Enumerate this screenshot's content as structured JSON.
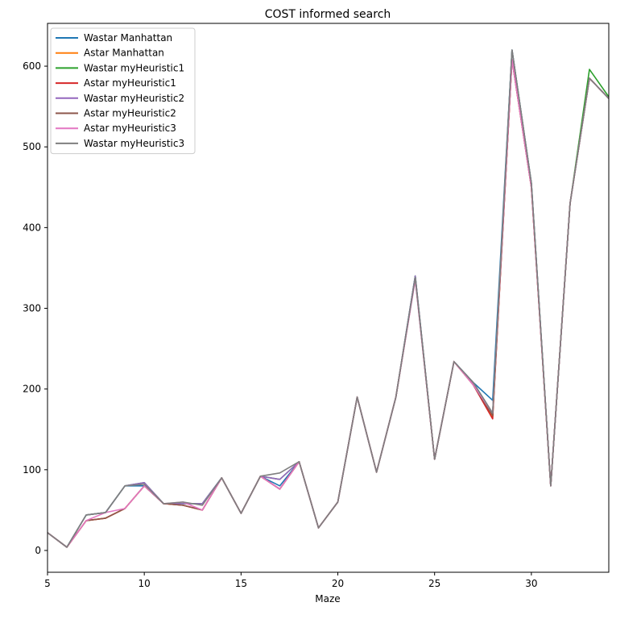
{
  "chart_data": {
    "type": "line",
    "title": "COST informed search",
    "xlabel": "Maze",
    "ylabel": "",
    "xlim": [
      5,
      34
    ],
    "ylim": [
      -27,
      653
    ],
    "xticks": [
      5,
      10,
      15,
      20,
      25,
      30
    ],
    "yticks": [
      0,
      100,
      200,
      300,
      400,
      500,
      600
    ],
    "grid": false,
    "legend_position": "top-left",
    "x": [
      5,
      6,
      7,
      8,
      9,
      10,
      11,
      12,
      13,
      14,
      15,
      16,
      17,
      18,
      19,
      20,
      21,
      22,
      23,
      24,
      25,
      26,
      27,
      28,
      29,
      30,
      31,
      32,
      33,
      34
    ],
    "series": [
      {
        "name": "Wastar Manhattan",
        "color": "#1f77b4",
        "values": [
          22,
          4,
          44,
          47,
          80,
          80,
          58,
          58,
          58,
          90,
          46,
          92,
          80,
          110,
          28,
          60,
          190,
          97,
          190,
          340,
          113,
          234,
          208,
          186,
          620,
          455,
          80,
          430,
          585,
          560
        ]
      },
      {
        "name": "Astar Manhattan",
        "color": "#ff7f0e",
        "values": [
          22,
          4,
          37,
          40,
          52,
          80,
          58,
          56,
          50,
          90,
          46,
          92,
          76,
          110,
          28,
          60,
          190,
          97,
          190,
          337,
          113,
          234,
          205,
          165,
          608,
          450,
          80,
          430,
          585,
          560
        ]
      },
      {
        "name": "Wastar myHeuristic1",
        "color": "#2ca02c",
        "values": [
          22,
          4,
          44,
          47,
          80,
          84,
          58,
          58,
          58,
          90,
          46,
          92,
          88,
          110,
          28,
          60,
          190,
          97,
          190,
          340,
          113,
          234,
          208,
          170,
          620,
          455,
          80,
          430,
          596,
          562
        ]
      },
      {
        "name": "Astar myHeuristic1",
        "color": "#d62728",
        "values": [
          22,
          4,
          37,
          40,
          52,
          80,
          58,
          56,
          50,
          90,
          46,
          92,
          76,
          110,
          28,
          60,
          190,
          97,
          190,
          337,
          113,
          234,
          205,
          163,
          608,
          450,
          80,
          430,
          585,
          560
        ]
      },
      {
        "name": "Wastar myHeuristic2",
        "color": "#9467bd",
        "values": [
          22,
          4,
          44,
          47,
          80,
          84,
          58,
          58,
          58,
          90,
          46,
          92,
          88,
          110,
          28,
          60,
          190,
          97,
          190,
          340,
          113,
          234,
          208,
          170,
          620,
          455,
          80,
          430,
          585,
          560
        ]
      },
      {
        "name": "Astar myHeuristic2",
        "color": "#8c564b",
        "values": [
          22,
          4,
          37,
          40,
          52,
          80,
          58,
          56,
          50,
          90,
          46,
          92,
          76,
          110,
          28,
          60,
          190,
          97,
          190,
          337,
          113,
          234,
          205,
          167,
          608,
          450,
          80,
          430,
          585,
          560
        ]
      },
      {
        "name": "Astar myHeuristic3",
        "color": "#e377c2",
        "values": [
          22,
          4,
          37,
          47,
          52,
          80,
          58,
          60,
          50,
          90,
          46,
          92,
          76,
          110,
          28,
          60,
          190,
          97,
          190,
          335,
          113,
          234,
          205,
          170,
          608,
          450,
          80,
          430,
          585,
          560
        ]
      },
      {
        "name": "Wastar myHeuristic3",
        "color": "#7f7f7f",
        "values": [
          22,
          4,
          44,
          47,
          80,
          82,
          58,
          60,
          56,
          90,
          46,
          92,
          96,
          110,
          28,
          60,
          190,
          97,
          190,
          338,
          113,
          234,
          208,
          170,
          620,
          455,
          80,
          430,
          585,
          560
        ]
      }
    ]
  }
}
